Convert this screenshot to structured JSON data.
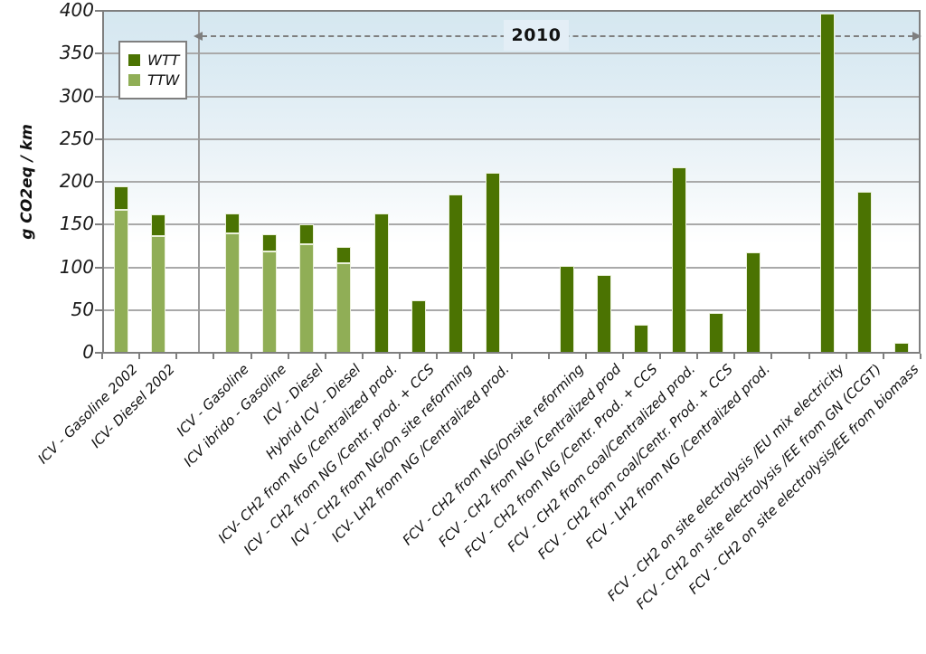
{
  "chart_data": {
    "type": "bar",
    "stacked": true,
    "title": "",
    "ylabel": "g CO2eq / km",
    "xlabel": "",
    "ylim": [
      0,
      400
    ],
    "yticks": [
      400,
      350,
      300,
      250,
      200,
      150,
      100,
      50,
      0
    ],
    "grid": true,
    "num_slots": 22,
    "divider_slot": 2,
    "annotation": {
      "label": "2010",
      "style": "double-headed dashed arrow spanning the 2010 scenarios"
    },
    "legend": {
      "position": "top-left",
      "entries": [
        {
          "label": "WTT",
          "color": "#4b7302"
        },
        {
          "label": "TTW",
          "color": "#90ae56"
        }
      ]
    },
    "series": [
      {
        "name": "WTT",
        "color": "#4b7302",
        "stack_order": "top"
      },
      {
        "name": "TTW",
        "color": "#90ae56",
        "stack_order": "bottom"
      }
    ],
    "categories": [
      {
        "label": "ICV - Gasoline 2002",
        "slot": 0,
        "TTW": 167,
        "WTT": 28
      },
      {
        "label": "ICV- Diesel 2002",
        "slot": 1,
        "TTW": 137,
        "WTT": 25
      },
      {
        "label": "ICV - Gasoline",
        "slot": 3,
        "TTW": 140,
        "WTT": 23
      },
      {
        "label": "ICV ibrido - Gasoline",
        "slot": 4,
        "TTW": 119,
        "WTT": 20
      },
      {
        "label": "ICV - Diesel",
        "slot": 5,
        "TTW": 127,
        "WTT": 23
      },
      {
        "label": "Hybrid ICV - Diesel",
        "slot": 6,
        "TTW": 105,
        "WTT": 19
      },
      {
        "label": "ICV- CH2 from NG /Centralized prod.",
        "slot": 7,
        "TTW": 0,
        "WTT": 163
      },
      {
        "label": "ICV - CH2 from NG /Centr. prod. + CCS",
        "slot": 8,
        "TTW": 0,
        "WTT": 61
      },
      {
        "label": "ICV - CH2 from NG/On site reforming",
        "slot": 9,
        "TTW": 0,
        "WTT": 185
      },
      {
        "label": "ICV- LH2 from NG /Centralized prod.",
        "slot": 10,
        "TTW": 0,
        "WTT": 211
      },
      {
        "label": "FCV - CH2 from NG/Onsite reforming",
        "slot": 12,
        "TTW": 0,
        "WTT": 102
      },
      {
        "label": "FCV - CH2 from NG /Centralized prod",
        "slot": 13,
        "TTW": 0,
        "WTT": 91
      },
      {
        "label": "FCV - CH2 from NG /Centr. Prod. + CCS",
        "slot": 14,
        "TTW": 0,
        "WTT": 33
      },
      {
        "label": "FCV - CH2 from coal/Centralized prod.",
        "slot": 15,
        "TTW": 0,
        "WTT": 217
      },
      {
        "label": "FCV - CH2 from coal/Centr. Prod. + CCS",
        "slot": 16,
        "TTW": 0,
        "WTT": 47
      },
      {
        "label": "FCV - LH2 from NG /Centralized prod.",
        "slot": 17,
        "TTW": 0,
        "WTT": 117
      },
      {
        "label": "FCV - CH2 on site electrolysis /EU mix electricity",
        "slot": 19,
        "TTW": 0,
        "WTT": 397
      },
      {
        "label": "FCV - CH2 on site electrolysis /EE from GN (CCGT)",
        "slot": 20,
        "TTW": 0,
        "WTT": 188
      },
      {
        "label": "FCV - CH2 on site electrolysis/EE from biomass",
        "slot": 21,
        "TTW": 0,
        "WTT": 12
      }
    ],
    "colors": {
      "wtt_green": "#4b7302",
      "ttw_green": "#90ae56",
      "bar_outline": "#eaf0da",
      "plot_bg_top": "#d5e7f0",
      "gridline": "#a9a9a9",
      "axis_frame": "#7f7f7f",
      "annotation_box_bg": "#e3eef6",
      "text": "#111111"
    }
  }
}
